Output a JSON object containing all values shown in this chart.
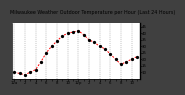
{
  "title": "Milwaukee Weather Outdoor Temperature per Hour (Last 24 Hours)",
  "x_values": [
    0,
    1,
    2,
    3,
    4,
    5,
    6,
    7,
    8,
    9,
    10,
    11,
    12,
    13,
    14,
    15,
    16,
    17,
    18,
    19,
    20,
    21,
    22,
    23
  ],
  "y_values": [
    10,
    9,
    8,
    10,
    12,
    18,
    25,
    30,
    34,
    38,
    40,
    41,
    42,
    39,
    35,
    33,
    30,
    28,
    24,
    20,
    16,
    18,
    20,
    22
  ],
  "y_min": 5,
  "y_max": 48,
  "line_color": "#ff0000",
  "marker_color": "#000000",
  "bg_color": "#404040",
  "plot_bg_color": "#ffffff",
  "grid_color": "#888888",
  "title_color": "#000000",
  "title_fontsize": 3.5,
  "tick_fontsize": 2.8,
  "y_ticks": [
    10,
    15,
    20,
    25,
    30,
    35,
    40,
    45
  ],
  "x_tick_labels": [
    "12a",
    "",
    "2",
    "",
    "4",
    "",
    "6",
    "",
    "8",
    "",
    "10",
    "",
    "12p",
    "",
    "2",
    "",
    "4",
    "",
    "6",
    "",
    "8",
    "",
    "10",
    ""
  ],
  "x_tick_positions": [
    0,
    1,
    2,
    3,
    4,
    5,
    6,
    7,
    8,
    9,
    10,
    11,
    12,
    13,
    14,
    15,
    16,
    17,
    18,
    19,
    20,
    21,
    22,
    23
  ],
  "grid_positions": [
    0,
    2,
    4,
    6,
    8,
    10,
    12,
    14,
    16,
    18,
    20,
    22
  ]
}
